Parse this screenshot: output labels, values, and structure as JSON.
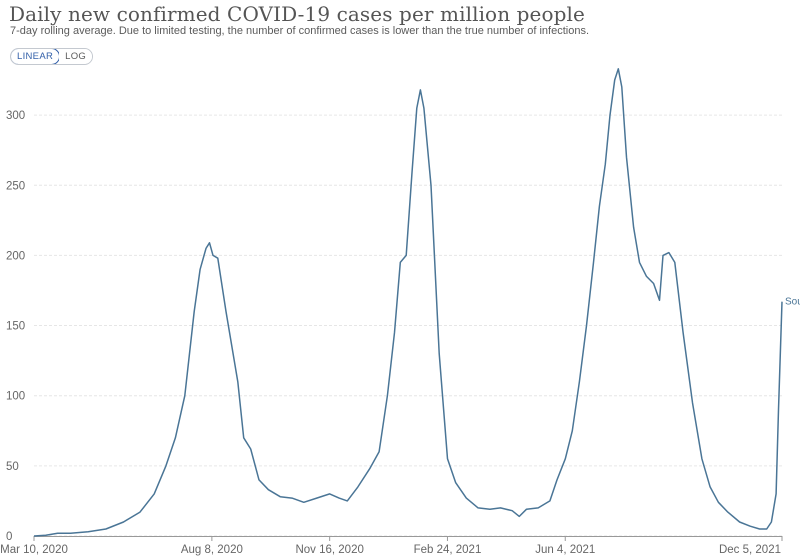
{
  "header": {
    "title": "Daily new confirmed COVID-19 cases per million people",
    "subtitle": "7-day rolling average. Due to limited testing, the number of confirmed cases is lower than the true number of infections."
  },
  "controls": {
    "linear_label": "LINEAR",
    "log_label": "LOG",
    "selected": "LINEAR"
  },
  "colors": {
    "line": "#4a7596",
    "grid": "#e6e6e6",
    "active": "#3360a9"
  },
  "chart_data": {
    "type": "line",
    "title": "Daily new confirmed COVID-19 cases per million people",
    "subtitle": "7-day rolling average. Due to limited testing, the number of confirmed cases is lower than the true number of infections.",
    "xlabel": "",
    "ylabel": "",
    "x_type": "date",
    "xlim": [
      "2020-03-10",
      "2021-12-05"
    ],
    "ylim": [
      0,
      335
    ],
    "yticks": [
      0,
      50,
      100,
      150,
      200,
      250,
      300
    ],
    "xticks": [
      {
        "date": "2020-03-10",
        "label": "Mar 10, 2020"
      },
      {
        "date": "2020-08-08",
        "label": "Aug 8, 2020"
      },
      {
        "date": "2020-11-16",
        "label": "Nov 16, 2020"
      },
      {
        "date": "2021-02-24",
        "label": "Feb 24, 2021"
      },
      {
        "date": "2021-06-04",
        "label": "Jun 4, 2021"
      },
      {
        "date": "2021-12-05",
        "label": "Dec 5, 2021"
      }
    ],
    "grid": true,
    "series": [
      {
        "name": "Sou",
        "points": [
          [
            "2020-03-10",
            0
          ],
          [
            "2020-03-20",
            0.5
          ],
          [
            "2020-03-30",
            2
          ],
          [
            "2020-04-10",
            2
          ],
          [
            "2020-04-25",
            3
          ],
          [
            "2020-05-10",
            5
          ],
          [
            "2020-05-25",
            10
          ],
          [
            "2020-06-08",
            17
          ],
          [
            "2020-06-20",
            30
          ],
          [
            "2020-06-30",
            50
          ],
          [
            "2020-07-08",
            70
          ],
          [
            "2020-07-16",
            100
          ],
          [
            "2020-07-24",
            160
          ],
          [
            "2020-07-29",
            190
          ],
          [
            "2020-08-03",
            205
          ],
          [
            "2020-08-06",
            209
          ],
          [
            "2020-08-09",
            200
          ],
          [
            "2020-08-13",
            198
          ],
          [
            "2020-08-20",
            160
          ],
          [
            "2020-08-30",
            110
          ],
          [
            "2020-09-04",
            70
          ],
          [
            "2020-09-10",
            62
          ],
          [
            "2020-09-17",
            40
          ],
          [
            "2020-09-25",
            33
          ],
          [
            "2020-10-05",
            28
          ],
          [
            "2020-10-15",
            27
          ],
          [
            "2020-10-25",
            24
          ],
          [
            "2020-11-05",
            27
          ],
          [
            "2020-11-16",
            30
          ],
          [
            "2020-11-24",
            27
          ],
          [
            "2020-12-01",
            25
          ],
          [
            "2020-12-10",
            35
          ],
          [
            "2020-12-20",
            48
          ],
          [
            "2020-12-28",
            60
          ],
          [
            "2021-01-04",
            100
          ],
          [
            "2021-01-10",
            145
          ],
          [
            "2021-01-15",
            195
          ],
          [
            "2021-01-20",
            200
          ],
          [
            "2021-01-25",
            260
          ],
          [
            "2021-01-29",
            305
          ],
          [
            "2021-02-01",
            318
          ],
          [
            "2021-02-04",
            305
          ],
          [
            "2021-02-10",
            250
          ],
          [
            "2021-02-17",
            130
          ],
          [
            "2021-02-24",
            55
          ],
          [
            "2021-03-03",
            38
          ],
          [
            "2021-03-12",
            27
          ],
          [
            "2021-03-22",
            20
          ],
          [
            "2021-04-01",
            19
          ],
          [
            "2021-04-10",
            20
          ],
          [
            "2021-04-20",
            18
          ],
          [
            "2021-04-26",
            14
          ],
          [
            "2021-05-02",
            19
          ],
          [
            "2021-05-12",
            20
          ],
          [
            "2021-05-22",
            25
          ],
          [
            "2021-05-28",
            40
          ],
          [
            "2021-06-04",
            55
          ],
          [
            "2021-06-10",
            75
          ],
          [
            "2021-06-16",
            110
          ],
          [
            "2021-06-22",
            150
          ],
          [
            "2021-06-28",
            195
          ],
          [
            "2021-07-03",
            235
          ],
          [
            "2021-07-08",
            265
          ],
          [
            "2021-07-12",
            300
          ],
          [
            "2021-07-16",
            325
          ],
          [
            "2021-07-19",
            333
          ],
          [
            "2021-07-22",
            320
          ],
          [
            "2021-07-26",
            270
          ],
          [
            "2021-08-01",
            220
          ],
          [
            "2021-08-06",
            195
          ],
          [
            "2021-08-12",
            185
          ],
          [
            "2021-08-18",
            180
          ],
          [
            "2021-08-23",
            168
          ],
          [
            "2021-08-26",
            200
          ],
          [
            "2021-08-31",
            202
          ],
          [
            "2021-09-05",
            195
          ],
          [
            "2021-09-12",
            145
          ],
          [
            "2021-09-20",
            95
          ],
          [
            "2021-09-28",
            55
          ],
          [
            "2021-10-05",
            35
          ],
          [
            "2021-10-12",
            24
          ],
          [
            "2021-10-20",
            17
          ],
          [
            "2021-10-30",
            10
          ],
          [
            "2021-11-08",
            7
          ],
          [
            "2021-11-16",
            5
          ],
          [
            "2021-11-22",
            5
          ],
          [
            "2021-11-26",
            10
          ],
          [
            "2021-11-30",
            30
          ],
          [
            "2021-12-02",
            90
          ],
          [
            "2021-12-05",
            167
          ]
        ]
      }
    ]
  }
}
